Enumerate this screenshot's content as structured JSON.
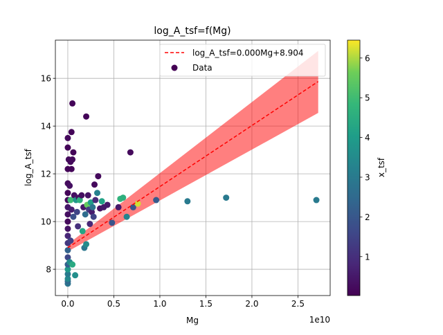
{
  "chart_data": {
    "type": "scatter",
    "title": "log_A_tsf=f(Mg)",
    "xlabel": "Mg",
    "ylabel": "log_A_tsf",
    "x_offset_label": "1e10",
    "xlim": [
      -1350000000.0,
      28500000000.0
    ],
    "ylim": [
      6.9,
      17.6
    ],
    "x_ticks": [
      0,
      5000000000.0,
      10000000000.0,
      15000000000.0,
      20000000000.0,
      25000000000.0
    ],
    "x_tick_labels": [
      "0.0",
      "0.5",
      "1.0",
      "1.5",
      "2.0",
      "2.5"
    ],
    "y_ticks": [
      8,
      10,
      12,
      14,
      16
    ],
    "y_tick_labels": [
      "8",
      "10",
      "12",
      "14",
      "16"
    ],
    "grid": true,
    "legend_position": "top-right",
    "legend": [
      {
        "label": "log_A_tsf=0.000Mg+8.904",
        "kind": "dashed-line",
        "color": "#ff0000"
      },
      {
        "label": "Data",
        "kind": "marker",
        "color": "#440154"
      }
    ],
    "fit": {
      "slope_per_1e10": 2.56,
      "intercept": 8.904,
      "x_range": [
        0,
        27200000000.0
      ],
      "color": "#ff0000"
    },
    "confidence_band": {
      "color": "#ff0000",
      "opacity": 0.5,
      "x": [
        0,
        27200000000.0
      ],
      "lower": [
        8.75,
        14.55
      ],
      "upper": [
        9.05,
        17.15
      ]
    },
    "colorbar": {
      "label": "x_tsf",
      "min": 0.02,
      "max": 6.45,
      "ticks": [
        1,
        2,
        3,
        4,
        5,
        6
      ],
      "tick_labels": [
        "1",
        "2",
        "3",
        "4",
        "5",
        "6"
      ],
      "colormap": "viridis"
    },
    "points": [
      {
        "x": 0,
        "y": 7.4,
        "c": 2.8
      },
      {
        "x": 0,
        "y": 7.5,
        "c": 2.5
      },
      {
        "x": 0,
        "y": 7.6,
        "c": 3.4
      },
      {
        "x": 0,
        "y": 7.8,
        "c": 3.0
      },
      {
        "x": 0,
        "y": 8.0,
        "c": 3.9
      },
      {
        "x": 0,
        "y": 8.2,
        "c": 2.2
      },
      {
        "x": 0,
        "y": 8.5,
        "c": 1.6
      },
      {
        "x": 0,
        "y": 8.8,
        "c": 2.3
      },
      {
        "x": 0,
        "y": 9.1,
        "c": 1.2
      },
      {
        "x": 0,
        "y": 9.4,
        "c": 0.8
      },
      {
        "x": 0,
        "y": 9.7,
        "c": 0.4
      },
      {
        "x": 0,
        "y": 10.0,
        "c": 0.2
      },
      {
        "x": 0,
        "y": 10.3,
        "c": 0.3
      },
      {
        "x": 0,
        "y": 10.6,
        "c": 0.5
      },
      {
        "x": 0,
        "y": 10.9,
        "c": 0.2
      },
      {
        "x": 0,
        "y": 11.2,
        "c": 0.1
      },
      {
        "x": 0,
        "y": 11.6,
        "c": 0.2
      },
      {
        "x": 0,
        "y": 12.2,
        "c": 0.1
      },
      {
        "x": 0,
        "y": 13.1,
        "c": 0.1
      },
      {
        "x": 0,
        "y": 13.5,
        "c": 0.2
      },
      {
        "x": 100000000.0,
        "y": 12.6,
        "c": 0.2
      },
      {
        "x": 200000000.0,
        "y": 11.5,
        "c": 0.3
      },
      {
        "x": 200000000.0,
        "y": 8.3,
        "c": 3.5
      },
      {
        "x": 300000000.0,
        "y": 12.5,
        "c": 0.2
      },
      {
        "x": 300000000.0,
        "y": 9.2,
        "c": 1.4
      },
      {
        "x": 300000000.0,
        "y": 10.9,
        "c": 5.0
      },
      {
        "x": 400000000.0,
        "y": 13.75,
        "c": 0.1
      },
      {
        "x": 400000000.0,
        "y": 12.2,
        "c": 0.1
      },
      {
        "x": 400000000.0,
        "y": 10.5,
        "c": 0.6
      },
      {
        "x": 500000000.0,
        "y": 14.95,
        "c": 0.1
      },
      {
        "x": 500000000.0,
        "y": 12.6,
        "c": 0.2
      },
      {
        "x": 500000000.0,
        "y": 8.2,
        "c": 4.4
      },
      {
        "x": 600000000.0,
        "y": 10.2,
        "c": 1.8
      },
      {
        "x": 600000000.0,
        "y": 12.9,
        "c": 0.1
      },
      {
        "x": 700000000.0,
        "y": 11.1,
        "c": 0.3
      },
      {
        "x": 800000000.0,
        "y": 7.75,
        "c": 3.6
      },
      {
        "x": 900000000.0,
        "y": 10.9,
        "c": 3.8
      },
      {
        "x": 1000000000.0,
        "y": 10.4,
        "c": 1.5
      },
      {
        "x": 1100000000.0,
        "y": 9.8,
        "c": 1.0
      },
      {
        "x": 1200000000.0,
        "y": 11.0,
        "c": 0.3
      },
      {
        "x": 1300000000.0,
        "y": 10.9,
        "c": 4.6
      },
      {
        "x": 1500000000.0,
        "y": 11.1,
        "c": 0.3
      },
      {
        "x": 1600000000.0,
        "y": 9.6,
        "c": 4.3
      },
      {
        "x": 1700000000.0,
        "y": 10.6,
        "c": 0.5
      },
      {
        "x": 1800000000.0,
        "y": 8.9,
        "c": 2.9
      },
      {
        "x": 1900000000.0,
        "y": 10.3,
        "c": 2.6
      },
      {
        "x": 2000000000.0,
        "y": 14.4,
        "c": 0.1
      },
      {
        "x": 2000000000.0,
        "y": 9.05,
        "c": 3.5
      },
      {
        "x": 2100000000.0,
        "y": 10.7,
        "c": 5.5
      },
      {
        "x": 2200000000.0,
        "y": 11.1,
        "c": 0.4
      },
      {
        "x": 2300000000.0,
        "y": 10.5,
        "c": 1.3
      },
      {
        "x": 2400000000.0,
        "y": 9.9,
        "c": 0.8
      },
      {
        "x": 2500000000.0,
        "y": 10.8,
        "c": 4.0
      },
      {
        "x": 2600000000.0,
        "y": 10.4,
        "c": 0.6
      },
      {
        "x": 2700000000.0,
        "y": 10.6,
        "c": 2.8
      },
      {
        "x": 2800000000.0,
        "y": 10.2,
        "c": 1.5
      },
      {
        "x": 2900000000.0,
        "y": 11.55,
        "c": 0.2
      },
      {
        "x": 3000000000.0,
        "y": 10.9,
        "c": 0.9
      },
      {
        "x": 3200000000.0,
        "y": 11.2,
        "c": 3.2
      },
      {
        "x": 3300000000.0,
        "y": 11.9,
        "c": 0.2
      },
      {
        "x": 3500000000.0,
        "y": 10.55,
        "c": 0.4
      },
      {
        "x": 3700000000.0,
        "y": 10.85,
        "c": 4.2
      },
      {
        "x": 3900000000.0,
        "y": 10.6,
        "c": 0.5
      },
      {
        "x": 4300000000.0,
        "y": 10.7,
        "c": 0.5
      },
      {
        "x": 4800000000.0,
        "y": 9.95,
        "c": 1.9
      },
      {
        "x": 5500000000.0,
        "y": 10.6,
        "c": 0.5
      },
      {
        "x": 5700000000.0,
        "y": 10.95,
        "c": 4.7
      },
      {
        "x": 6000000000.0,
        "y": 11.0,
        "c": 4.6
      },
      {
        "x": 6400000000.0,
        "y": 10.2,
        "c": 3.3
      },
      {
        "x": 6800000000.0,
        "y": 12.9,
        "c": 0.2
      },
      {
        "x": 7100000000.0,
        "y": 10.6,
        "c": 1.9
      },
      {
        "x": 7600000000.0,
        "y": 10.75,
        "c": 6.2
      },
      {
        "x": 9600000000.0,
        "y": 10.9,
        "c": 2.1
      },
      {
        "x": 13000000000.0,
        "y": 10.85,
        "c": 3.0
      },
      {
        "x": 17200000000.0,
        "y": 11.0,
        "c": 3.0
      },
      {
        "x": 27000000000.0,
        "y": 10.9,
        "c": 3.0
      }
    ]
  }
}
